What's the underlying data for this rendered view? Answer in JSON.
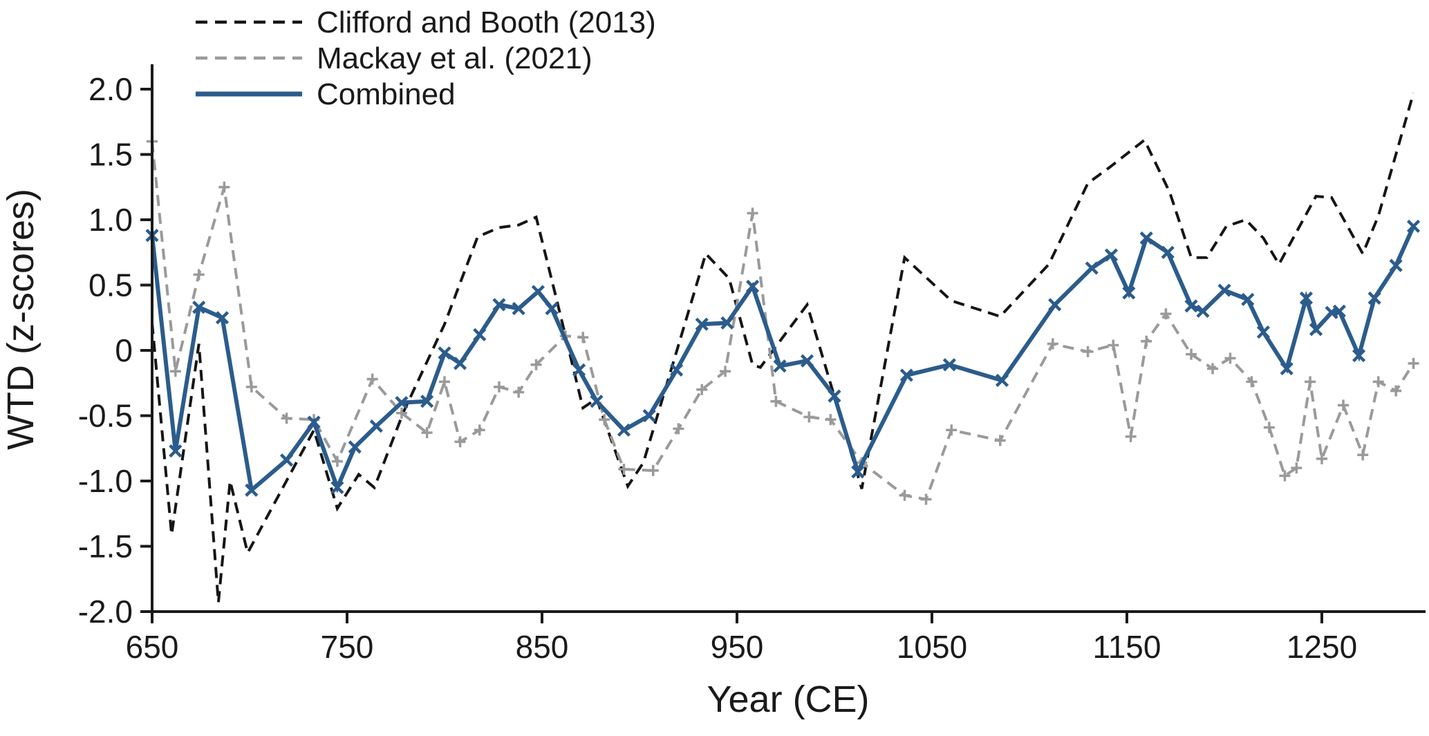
{
  "chart_data": {
    "type": "line",
    "title": "",
    "xlabel": "Year (CE)",
    "ylabel": "WTD (z-scores)",
    "xlim": [
      650,
      1305
    ],
    "ylim": [
      -2.0,
      2.0
    ],
    "grid": false,
    "legend_position": "top-left",
    "x_ticks": {
      "values": [
        650,
        750,
        850,
        950,
        1050,
        1150,
        1250
      ],
      "labels": [
        "650",
        "750",
        "850",
        "950",
        "1050",
        "1150",
        "1250"
      ]
    },
    "y_ticks": {
      "values": [
        2.0,
        1.5,
        1.0,
        0.5,
        0,
        -0.5,
        -1.0,
        -1.5,
        -2.0
      ],
      "labels": [
        "2.0",
        "1.5",
        "1.0",
        "0.5",
        "0",
        "-0.5",
        "-1.0",
        "-1.5",
        "-2.0"
      ]
    },
    "series": [
      {
        "name": "Clifford and Booth (2013)",
        "color": "#151515",
        "style": "dashed",
        "marker": "none",
        "line_width": 4,
        "points": [
          [
            650,
            0.21
          ],
          [
            660,
            -1.41
          ],
          [
            674,
            0.05
          ],
          [
            684,
            -1.93
          ],
          [
            690,
            -1.0
          ],
          [
            699,
            -1.55
          ],
          [
            733,
            -0.61
          ],
          [
            745,
            -1.21
          ],
          [
            756,
            -0.95
          ],
          [
            764,
            -1.05
          ],
          [
            779,
            -0.47
          ],
          [
            800,
            0.2
          ],
          [
            817,
            0.87
          ],
          [
            828,
            0.94
          ],
          [
            838,
            0.96
          ],
          [
            847,
            1.02
          ],
          [
            857,
            0.42
          ],
          [
            871,
            -0.44
          ],
          [
            878,
            -0.37
          ],
          [
            894,
            -1.04
          ],
          [
            902,
            -0.86
          ],
          [
            934,
            0.74
          ],
          [
            946,
            0.55
          ],
          [
            958,
            -0.11
          ],
          [
            962,
            -0.13
          ],
          [
            986,
            0.35
          ],
          [
            1014,
            -1.06
          ],
          [
            1036,
            0.71
          ],
          [
            1060,
            0.38
          ],
          [
            1085,
            0.26
          ],
          [
            1110,
            0.66
          ],
          [
            1130,
            1.28
          ],
          [
            1141,
            1.4
          ],
          [
            1159,
            1.61
          ],
          [
            1172,
            1.21
          ],
          [
            1183,
            0.71
          ],
          [
            1191,
            0.71
          ],
          [
            1201,
            0.95
          ],
          [
            1211,
            1.0
          ],
          [
            1220,
            0.86
          ],
          [
            1228,
            0.66
          ],
          [
            1247,
            1.18
          ],
          [
            1255,
            1.17
          ],
          [
            1271,
            0.74
          ],
          [
            1279,
            1.03
          ],
          [
            1297,
            1.97
          ]
        ]
      },
      {
        "name": "Mackay et al. (2021)",
        "color": "#9a9a9a",
        "style": "dashed",
        "marker": "plus",
        "line_width": 4,
        "points": [
          [
            650,
            1.6
          ],
          [
            662,
            -0.16
          ],
          [
            674,
            0.58
          ],
          [
            687,
            1.25
          ],
          [
            701,
            -0.28
          ],
          [
            719,
            -0.52
          ],
          [
            733,
            -0.53
          ],
          [
            745,
            -0.85
          ],
          [
            763,
            -0.22
          ],
          [
            778,
            -0.48
          ],
          [
            791,
            -0.63
          ],
          [
            800,
            -0.24
          ],
          [
            808,
            -0.7
          ],
          [
            818,
            -0.61
          ],
          [
            828,
            -0.28
          ],
          [
            838,
            -0.32
          ],
          [
            847,
            -0.11
          ],
          [
            862,
            0.11
          ],
          [
            871,
            0.1
          ],
          [
            882,
            -0.53
          ],
          [
            892,
            -0.91
          ],
          [
            907,
            -0.92
          ],
          [
            920,
            -0.6
          ],
          [
            932,
            -0.3
          ],
          [
            944,
            -0.16
          ],
          [
            958,
            1.05
          ],
          [
            970,
            -0.39
          ],
          [
            987,
            -0.51
          ],
          [
            998,
            -0.53
          ],
          [
            1014,
            -0.86
          ],
          [
            1036,
            -1.11
          ],
          [
            1047,
            -1.14
          ],
          [
            1060,
            -0.61
          ],
          [
            1085,
            -0.69
          ],
          [
            1112,
            0.05
          ],
          [
            1130,
            -0.01
          ],
          [
            1143,
            0.04
          ],
          [
            1152,
            -0.66
          ],
          [
            1160,
            0.07
          ],
          [
            1170,
            0.28
          ],
          [
            1183,
            -0.03
          ],
          [
            1194,
            -0.14
          ],
          [
            1203,
            -0.06
          ],
          [
            1214,
            -0.24
          ],
          [
            1223,
            -0.59
          ],
          [
            1231,
            -0.96
          ],
          [
            1237,
            -0.9
          ],
          [
            1244,
            -0.24
          ],
          [
            1250,
            -0.83
          ],
          [
            1261,
            -0.42
          ],
          [
            1271,
            -0.8
          ],
          [
            1279,
            -0.24
          ],
          [
            1288,
            -0.31
          ],
          [
            1297,
            -0.1
          ]
        ]
      },
      {
        "name": "Combined",
        "color": "#2b5c8c",
        "style": "solid",
        "marker": "x",
        "line_width": 6,
        "points": [
          [
            650,
            0.88
          ],
          [
            662,
            -0.77
          ],
          [
            674,
            0.33
          ],
          [
            686,
            0.25
          ],
          [
            701,
            -1.07
          ],
          [
            719,
            -0.84
          ],
          [
            733,
            -0.55
          ],
          [
            745,
            -1.05
          ],
          [
            754,
            -0.74
          ],
          [
            765,
            -0.58
          ],
          [
            778,
            -0.4
          ],
          [
            791,
            -0.39
          ],
          [
            800,
            -0.02
          ],
          [
            808,
            -0.1
          ],
          [
            818,
            0.12
          ],
          [
            828,
            0.35
          ],
          [
            838,
            0.32
          ],
          [
            848,
            0.45
          ],
          [
            855,
            0.32
          ],
          [
            869,
            -0.15
          ],
          [
            878,
            -0.39
          ],
          [
            892,
            -0.61
          ],
          [
            905,
            -0.5
          ],
          [
            919,
            -0.15
          ],
          [
            932,
            0.2
          ],
          [
            945,
            0.21
          ],
          [
            958,
            0.49
          ],
          [
            972,
            -0.12
          ],
          [
            986,
            -0.08
          ],
          [
            1000,
            -0.35
          ],
          [
            1012,
            -0.93
          ],
          [
            1037,
            -0.19
          ],
          [
            1059,
            -0.11
          ],
          [
            1086,
            -0.23
          ],
          [
            1113,
            0.35
          ],
          [
            1132,
            0.63
          ],
          [
            1142,
            0.73
          ],
          [
            1151,
            0.44
          ],
          [
            1160,
            0.86
          ],
          [
            1171,
            0.75
          ],
          [
            1183,
            0.34
          ],
          [
            1189,
            0.3
          ],
          [
            1200,
            0.46
          ],
          [
            1212,
            0.39
          ],
          [
            1220,
            0.14
          ],
          [
            1232,
            -0.14
          ],
          [
            1242,
            0.4
          ],
          [
            1247,
            0.16
          ],
          [
            1255,
            0.29
          ],
          [
            1259,
            0.3
          ],
          [
            1269,
            -0.04
          ],
          [
            1277,
            0.4
          ],
          [
            1288,
            0.65
          ],
          [
            1297,
            0.95
          ]
        ]
      }
    ]
  }
}
